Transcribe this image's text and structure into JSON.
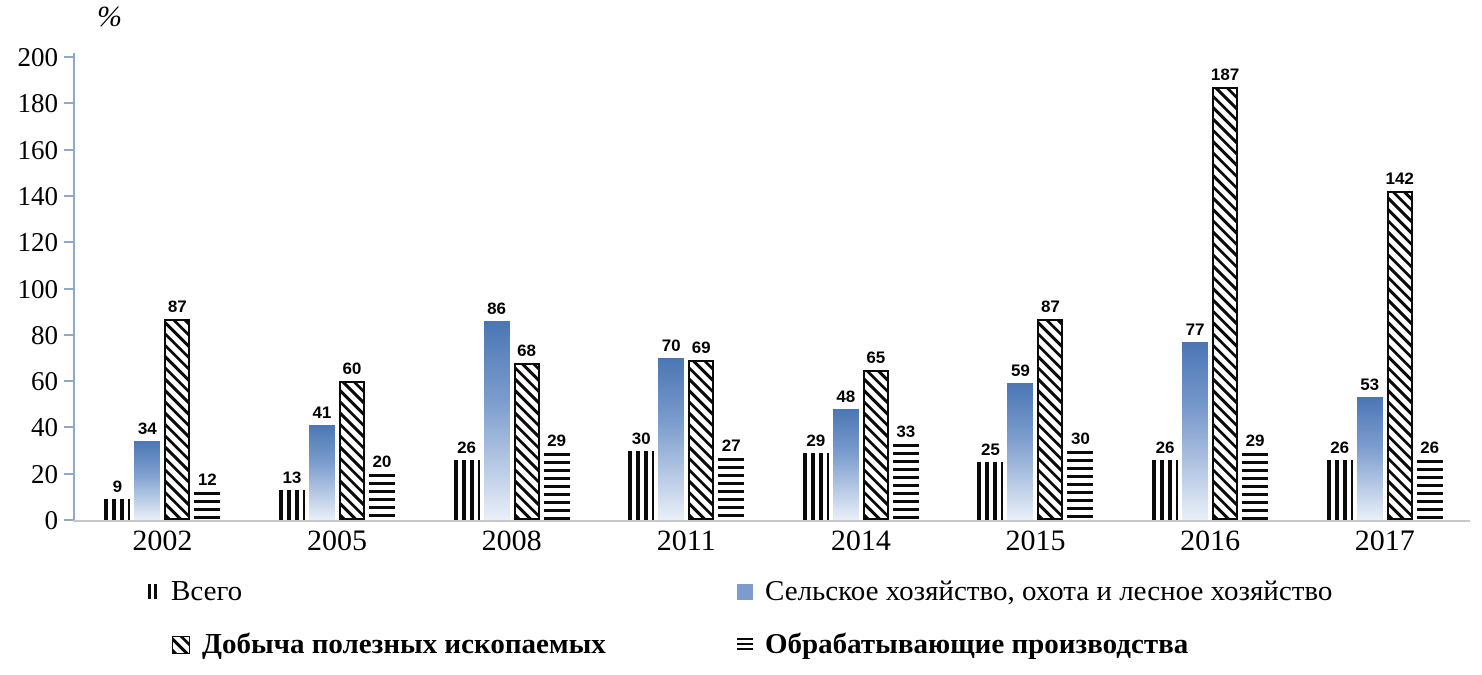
{
  "chart_data": {
    "type": "bar",
    "title": "",
    "xlabel": "",
    "ylabel": "%",
    "ylim": [
      0,
      200
    ],
    "yticks": [
      0,
      20,
      40,
      60,
      80,
      100,
      120,
      140,
      160,
      180,
      200
    ],
    "grid": false,
    "legend_position": "bottom",
    "categories": [
      "2002",
      "2005",
      "2008",
      "2011",
      "2014",
      "2015",
      "2016",
      "2017"
    ],
    "series": [
      {
        "name": "Всего",
        "pattern": "vertical-stripes",
        "color": "#0a0a0a",
        "values": [
          9,
          13,
          26,
          30,
          29,
          25,
          26,
          26
        ]
      },
      {
        "name": "Сельское хозяйство, охота и лесное хозяйство",
        "pattern": "solid-blue-gradient",
        "color": "#5b84c2",
        "values": [
          34,
          41,
          86,
          70,
          48,
          59,
          77,
          53
        ]
      },
      {
        "name": "Добыча полезных ископаемых",
        "pattern": "diagonal-hatch",
        "color": "#0a0a0a",
        "values": [
          87,
          60,
          68,
          69,
          65,
          87,
          187,
          142
        ]
      },
      {
        "name": "Обрабатывающие производства",
        "pattern": "horizontal-stripes",
        "color": "#0a0a0a",
        "values": [
          12,
          20,
          29,
          27,
          33,
          30,
          29,
          26
        ]
      }
    ],
    "colors": {
      "bar_blue_top": "#4a76b4",
      "bar_blue_bottom": "#e9eff8",
      "axis_line": "#8fa9cc",
      "baseline": "#c6c6c6",
      "pattern_black": "#0a0a0a"
    }
  }
}
